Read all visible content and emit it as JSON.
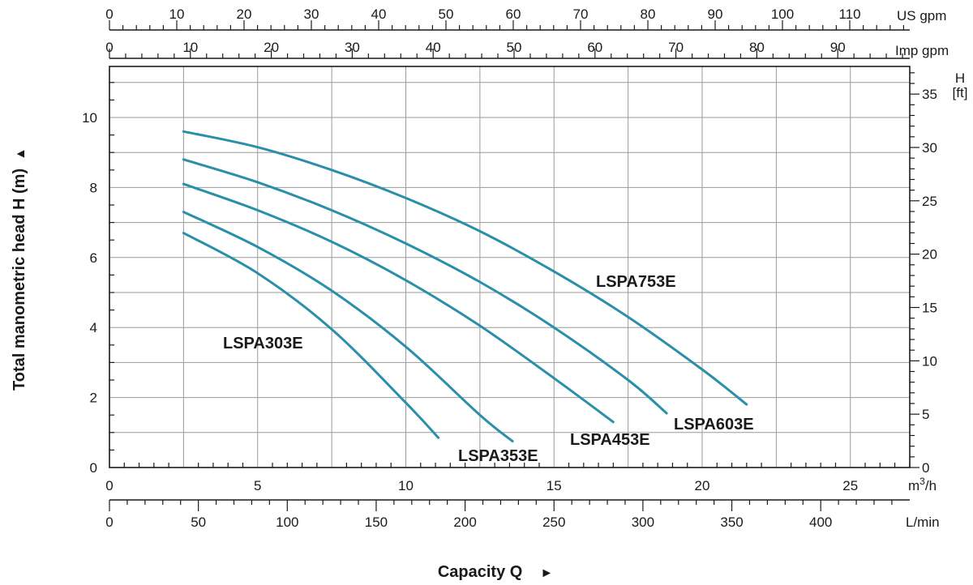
{
  "colors": {
    "curve": "#2a8fa8",
    "grid": "#9a9a9a",
    "axis": "#1a1a1a"
  },
  "chart_data": {
    "type": "line",
    "title": "",
    "xlabel": "Capacity Q",
    "ylabel": "Total manometric head H (m)",
    "x_unit": "m³/h",
    "xlim": [
      0,
      27
    ],
    "ylim": [
      0,
      11.5
    ],
    "grid": true,
    "x_ticks": [
      0,
      5,
      10,
      15,
      20,
      25
    ],
    "x_tick_labels": [
      "0",
      "5",
      "10",
      "15",
      "20",
      "25"
    ],
    "y_ticks": [
      0,
      2,
      4,
      6,
      8,
      10
    ],
    "y_tick_labels": [
      "0",
      "2",
      "4",
      "6",
      "8",
      "10"
    ],
    "axis_markers": {
      "y_arrow": "▲",
      "x_arrow": "►"
    },
    "secondary_axes": {
      "lmin": {
        "unit": "L/min",
        "ticks": [
          0,
          50,
          100,
          150,
          200,
          250,
          300,
          350,
          400
        ],
        "labels": [
          "0",
          "50",
          "100",
          "150",
          "200",
          "250",
          "300",
          "350",
          "400"
        ]
      },
      "imp_gpm": {
        "unit": "Imp gpm",
        "ticks": [
          0,
          10,
          20,
          30,
          40,
          50,
          60,
          70,
          80,
          90
        ],
        "labels": [
          "0",
          "10",
          "20",
          "30",
          "40",
          "50",
          "60",
          "70",
          "80",
          "90"
        ]
      },
      "us_gpm": {
        "unit": "US gpm",
        "ticks": [
          0,
          10,
          20,
          30,
          40,
          50,
          60,
          70,
          80,
          90,
          100,
          110
        ],
        "labels": [
          "0",
          "10",
          "20",
          "30",
          "40",
          "50",
          "60",
          "70",
          "80",
          "90",
          "100",
          "110"
        ]
      },
      "ft": {
        "unit_line1": "H",
        "unit_line2": "[ft]",
        "ticks": [
          0,
          5,
          10,
          15,
          20,
          25,
          30,
          35
        ],
        "labels": [
          "0",
          "5",
          "10",
          "15",
          "20",
          "25",
          "30",
          "35"
        ]
      }
    },
    "series": [
      {
        "name": "LSPA303E",
        "x": [
          2.5,
          5,
          7.5,
          10,
          11.1
        ],
        "y": [
          6.7,
          5.55,
          3.95,
          1.85,
          0.85
        ]
      },
      {
        "name": "LSPA353E",
        "x": [
          2.5,
          5,
          7.5,
          10,
          12.5,
          13.6
        ],
        "y": [
          7.3,
          6.3,
          5.05,
          3.45,
          1.5,
          0.75
        ]
      },
      {
        "name": "LSPA453E",
        "x": [
          2.5,
          5,
          7.5,
          10,
          12.5,
          15,
          17.0
        ],
        "y": [
          8.1,
          7.35,
          6.45,
          5.35,
          4.05,
          2.55,
          1.3
        ]
      },
      {
        "name": "LSPA603E",
        "x": [
          2.5,
          5,
          7.5,
          10,
          12.5,
          15,
          17.5,
          18.8
        ],
        "y": [
          8.8,
          8.15,
          7.35,
          6.4,
          5.3,
          4.0,
          2.5,
          1.55
        ]
      },
      {
        "name": "LSPA753E",
        "x": [
          2.5,
          5,
          7.5,
          10,
          12.5,
          15,
          17.5,
          20,
          21.5
        ],
        "y": [
          9.6,
          9.15,
          8.5,
          7.7,
          6.75,
          5.6,
          4.3,
          2.8,
          1.8
        ]
      }
    ]
  }
}
